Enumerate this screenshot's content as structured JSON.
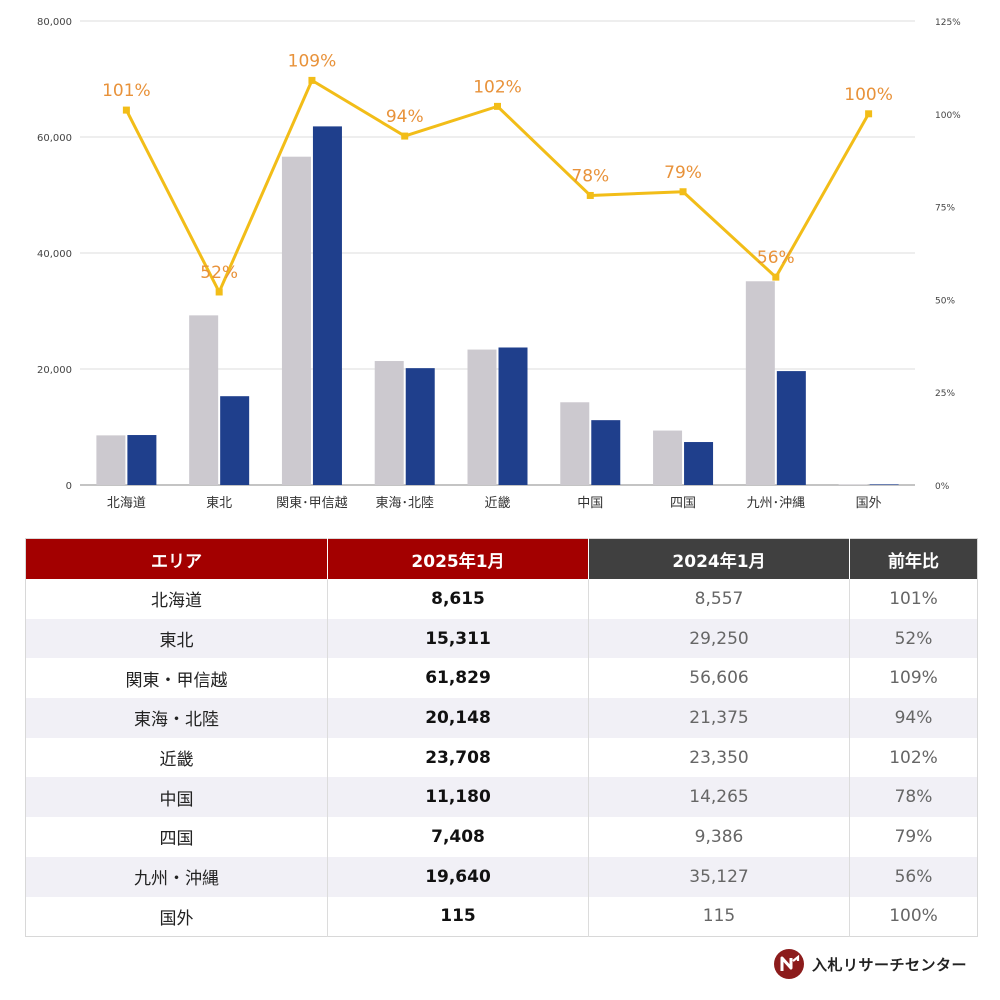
{
  "chart_data": {
    "type": "bar",
    "categories": [
      "北海道",
      "東北",
      "関東・甲信越",
      "東海・北陸",
      "近畿",
      "中国",
      "四国",
      "九州・沖縄",
      "国外"
    ],
    "category_labels": [
      "北海道",
      "東北",
      "関東･甲信越",
      "東海･北陸",
      "近畿",
      "中国",
      "四国",
      "九州･沖縄",
      "国外"
    ],
    "series": [
      {
        "kind": "bar",
        "axis": "left",
        "color": "#ccc9cf",
        "values": [
          8557,
          29250,
          56606,
          21375,
          23350,
          14265,
          9386,
          35127,
          115
        ]
      },
      {
        "kind": "bar",
        "axis": "right_none",
        "color": "#1f3f8c",
        "values": [
          8615,
          15311,
          61829,
          20148,
          23708,
          11180,
          7408,
          19640,
          115
        ]
      },
      {
        "kind": "line",
        "axis": "right",
        "color": "#f2bd18",
        "values": [
          101,
          52,
          109,
          94,
          102,
          78,
          79,
          56,
          100
        ],
        "labels": [
          "101%",
          "52%",
          "109%",
          "94%",
          "102%",
          "78%",
          "79%",
          "56%",
          "100%"
        ],
        "label_color": "#e8923a"
      }
    ],
    "ylim": [
      0,
      80000
    ],
    "yticks": [
      "0",
      "20,000",
      "40,000",
      "60,000",
      "80,000"
    ],
    "y2lim": [
      0,
      125
    ],
    "y2ticks": [
      "0%",
      "25%",
      "50%",
      "75%",
      "100%",
      "125%"
    ],
    "grid": true
  },
  "table": {
    "headers": [
      "エリア",
      "2025年1月",
      "2024年1月",
      "前年比"
    ],
    "rows": [
      [
        "北海道",
        "8,615",
        "8,557",
        "101%"
      ],
      [
        "東北",
        "15,311",
        "29,250",
        "52%"
      ],
      [
        "関東・甲信越",
        "61,829",
        "56,606",
        "109%"
      ],
      [
        "東海・北陸",
        "20,148",
        "21,375",
        "94%"
      ],
      [
        "近畿",
        "23,708",
        "23,350",
        "102%"
      ],
      [
        "中国",
        "11,180",
        "14,265",
        "78%"
      ],
      [
        "四国",
        "7,408",
        "9,386",
        "79%"
      ],
      [
        "九州・沖縄",
        "19,640",
        "35,127",
        "56%"
      ],
      [
        "国外",
        "115",
        "115",
        "100%"
      ]
    ]
  },
  "logo": {
    "text": "入札リサーチセンター",
    "icon": "nyusatsu-logo-icon",
    "color": "#8c1c1c"
  }
}
